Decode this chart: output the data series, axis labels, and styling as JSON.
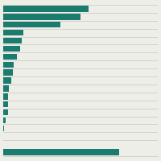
{
  "values": [
    55,
    50,
    37,
    13,
    12,
    11,
    9,
    7,
    6,
    5,
    3.5,
    3,
    3,
    3,
    1.5,
    0.3,
    0,
    75
  ],
  "bar_color": "#1b7b6f",
  "background_color": "#eeeee8",
  "line_color": "#c8c8c0",
  "n_main_bars": 17,
  "total_bars": 18,
  "gap_before_last": true,
  "figsize": [
    2.0,
    2.0
  ],
  "dpi": 100,
  "bar_height": 0.75,
  "xlim": 100
}
